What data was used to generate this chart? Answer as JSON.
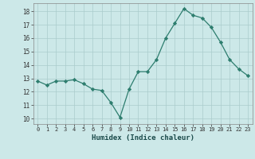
{
  "x": [
    0,
    1,
    2,
    3,
    4,
    5,
    6,
    7,
    8,
    9,
    10,
    11,
    12,
    13,
    14,
    15,
    16,
    17,
    18,
    19,
    20,
    21,
    22,
    23
  ],
  "y": [
    12.8,
    12.5,
    12.8,
    12.8,
    12.9,
    12.6,
    12.2,
    12.1,
    11.2,
    10.1,
    12.2,
    13.5,
    13.5,
    14.4,
    16.0,
    17.1,
    18.2,
    17.7,
    17.5,
    16.8,
    15.7,
    14.4,
    13.7,
    13.2
  ],
  "xlim": [
    -0.5,
    23.5
  ],
  "ylim": [
    9.6,
    18.6
  ],
  "yticks": [
    10,
    11,
    12,
    13,
    14,
    15,
    16,
    17,
    18
  ],
  "xticks": [
    0,
    1,
    2,
    3,
    4,
    5,
    6,
    7,
    8,
    9,
    10,
    11,
    12,
    13,
    14,
    15,
    16,
    17,
    18,
    19,
    20,
    21,
    22,
    23
  ],
  "xlabel": "Humidex (Indice chaleur)",
  "line_color": "#2d7d6e",
  "marker": "D",
  "marker_size": 2.2,
  "bg_color": "#cce8e8",
  "grid_color": "#aacccc",
  "spine_color": "#888888"
}
